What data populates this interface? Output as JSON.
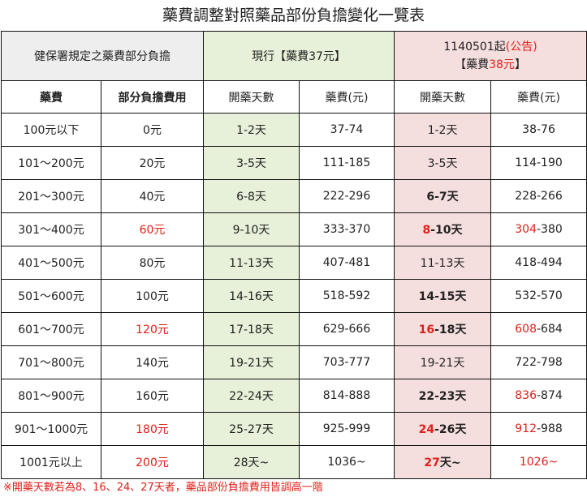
{
  "title": "藥費調整對照藥品部份負擔變化一覽表",
  "header": {
    "label": "健保署規定之藥費部分負擔",
    "current": "現行【藥費37元】",
    "new_line1_prefix": "1140501起",
    "new_line1_notice": "(公告)",
    "new_line2_open": "【藥費",
    "new_line2_price": "38元",
    "new_line2_close": "】"
  },
  "columns": [
    "藥費",
    "部分負擔費用",
    "開藥天數",
    "藥費(元)",
    "開藥天數",
    "藥費(元)"
  ],
  "rows": [
    {
      "fee": "100元以下",
      "copay": "0元",
      "copay_red": false,
      "cur_days": "1-2天",
      "cur_cost": "37-74",
      "new_days_a": "1-2天",
      "new_days_b": "",
      "new_days_bold": false,
      "new_days_red": false,
      "new_cost_a": "38-76",
      "new_cost_b": "",
      "new_cost_red": false
    },
    {
      "fee": "101～200元",
      "copay": "20元",
      "copay_red": false,
      "cur_days": "3-5天",
      "cur_cost": "111-185",
      "new_days_a": "3-5天",
      "new_days_b": "",
      "new_days_bold": false,
      "new_days_red": false,
      "new_cost_a": "114-190",
      "new_cost_b": "",
      "new_cost_red": false
    },
    {
      "fee": "201～300元",
      "copay": "40元",
      "copay_red": false,
      "cur_days": "6-8天",
      "cur_cost": "222-296",
      "new_days_a": "6-7天",
      "new_days_b": "",
      "new_days_bold": true,
      "new_days_red": false,
      "new_cost_a": "228-266",
      "new_cost_b": "",
      "new_cost_red": false
    },
    {
      "fee": "301～400元",
      "copay": "60元",
      "copay_red": true,
      "cur_days": "9-10天",
      "cur_cost": "333-370",
      "new_days_a": "8",
      "new_days_b": "-10天",
      "new_days_bold": true,
      "new_days_red": true,
      "new_cost_a": "304",
      "new_cost_b": "-380",
      "new_cost_red": true
    },
    {
      "fee": "401～500元",
      "copay": "80元",
      "copay_red": false,
      "cur_days": "11-13天",
      "cur_cost": "407-481",
      "new_days_a": "11-13天",
      "new_days_b": "",
      "new_days_bold": false,
      "new_days_red": false,
      "new_cost_a": "418-494",
      "new_cost_b": "",
      "new_cost_red": false
    },
    {
      "fee": "501～600元",
      "copay": "100元",
      "copay_red": false,
      "cur_days": "14-16天",
      "cur_cost": "518-592",
      "new_days_a": "14-15天",
      "new_days_b": "",
      "new_days_bold": true,
      "new_days_red": false,
      "new_cost_a": "532-570",
      "new_cost_b": "",
      "new_cost_red": false
    },
    {
      "fee": "601～700元",
      "copay": "120元",
      "copay_red": true,
      "cur_days": "17-18天",
      "cur_cost": "629-666",
      "new_days_a": "16",
      "new_days_b": "-18天",
      "new_days_bold": true,
      "new_days_red": true,
      "new_cost_a": "608",
      "new_cost_b": "-684",
      "new_cost_red": true
    },
    {
      "fee": "701～800元",
      "copay": "140元",
      "copay_red": false,
      "cur_days": "19-21天",
      "cur_cost": "703-777",
      "new_days_a": "19-21天",
      "new_days_b": "",
      "new_days_bold": false,
      "new_days_red": false,
      "new_cost_a": "722-798",
      "new_cost_b": "",
      "new_cost_red": false
    },
    {
      "fee": "801～900元",
      "copay": "160元",
      "copay_red": false,
      "cur_days": "22-24天",
      "cur_cost": "814-888",
      "new_days_a": "22-23天",
      "new_days_b": "",
      "new_days_bold": true,
      "new_days_red": false,
      "new_cost_a": "836",
      "new_cost_b": "-874",
      "new_cost_red": true
    },
    {
      "fee": "901～1000元",
      "copay": "180元",
      "copay_red": true,
      "cur_days": "25-27天",
      "cur_cost": "925-999",
      "new_days_a": "24",
      "new_days_b": "-26天",
      "new_days_bold": true,
      "new_days_red": true,
      "new_cost_a": "912",
      "new_cost_b": "-988",
      "new_cost_red": true
    },
    {
      "fee": "1001元以上",
      "copay": "200元",
      "copay_red": true,
      "cur_days": "28天~",
      "cur_cost": "1036~",
      "new_days_a": "27",
      "new_days_b": "天~",
      "new_days_bold": true,
      "new_days_red": true,
      "new_cost_a": "1026~",
      "new_cost_b": "",
      "new_cost_red": true
    }
  ],
  "note": "※開藥天數若為8、16、24、27天者，藥品部份負擔費用皆調高一階",
  "colors": {
    "current_bg": "#e7f0d8",
    "new_bg": "#f5dede",
    "label_bg": "#eeeeee",
    "red": "#e0201a"
  }
}
